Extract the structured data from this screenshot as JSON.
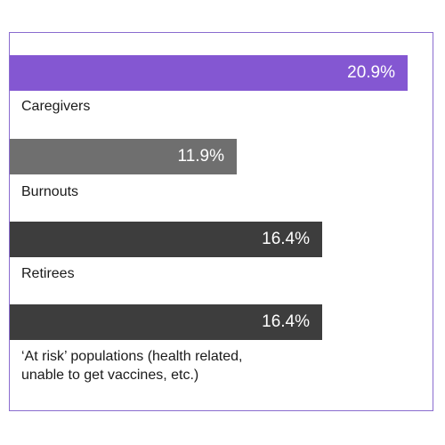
{
  "chart_data": {
    "type": "bar",
    "orientation": "horizontal",
    "categories": [
      "Caregivers",
      "Burnouts",
      "Retirees",
      "‘At risk’ populations (health related, unable to get vaccines, etc.)"
    ],
    "values": [
      20.9,
      11.9,
      16.4,
      16.4
    ],
    "value_labels": [
      "20.9%",
      "11.9%",
      "16.4%",
      "16.4%"
    ],
    "bar_colors": [
      "#8457d2",
      "#6f6f6f",
      "#3d3d3d",
      "#3d3d3d"
    ],
    "xlim": [
      0,
      21.3
    ],
    "grid": false
  },
  "colors": {
    "frame": "#8a6ccf",
    "label_text": "#1a1a1a",
    "value_text": "#ffffff"
  }
}
